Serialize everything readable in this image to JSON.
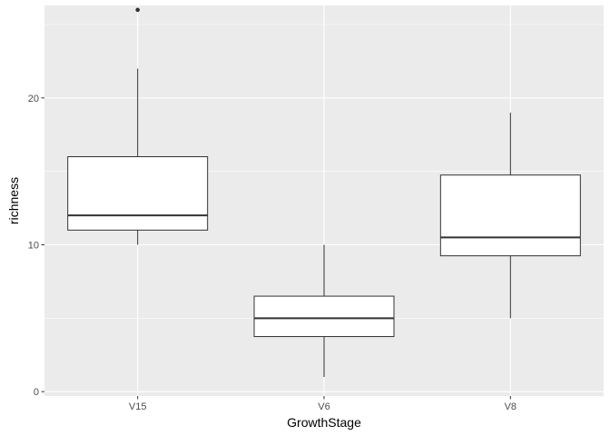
{
  "chart_data": {
    "type": "boxplot",
    "xlabel": "GrowthStage",
    "ylabel": "richness",
    "categories": [
      "V15",
      "V6",
      "V8"
    ],
    "boxes": [
      {
        "category": "V15",
        "whisker_low": 10,
        "q1": 11,
        "median": 12,
        "q3": 16,
        "whisker_high": 22,
        "outliers": [
          26
        ]
      },
      {
        "category": "V6",
        "whisker_low": 1,
        "q1": 3.75,
        "median": 5,
        "q3": 6.5,
        "whisker_high": 10,
        "outliers": []
      },
      {
        "category": "V8",
        "whisker_low": 5,
        "q1": 9.25,
        "median": 10.5,
        "q3": 14.75,
        "whisker_high": 19,
        "outliers": []
      }
    ],
    "ylim": [
      -0.3,
      26.3
    ],
    "y_ticks": [
      0,
      10,
      20
    ],
    "y_tick_labels": [
      "0",
      "10",
      "20"
    ],
    "grid": true,
    "colors": {
      "panel_background": "#ebebeb",
      "grid_major": "#ffffff",
      "box_fill": "#ffffff",
      "box_line": "#333333",
      "tick_text": "#4d4d4d",
      "title_text": "#000000"
    }
  }
}
